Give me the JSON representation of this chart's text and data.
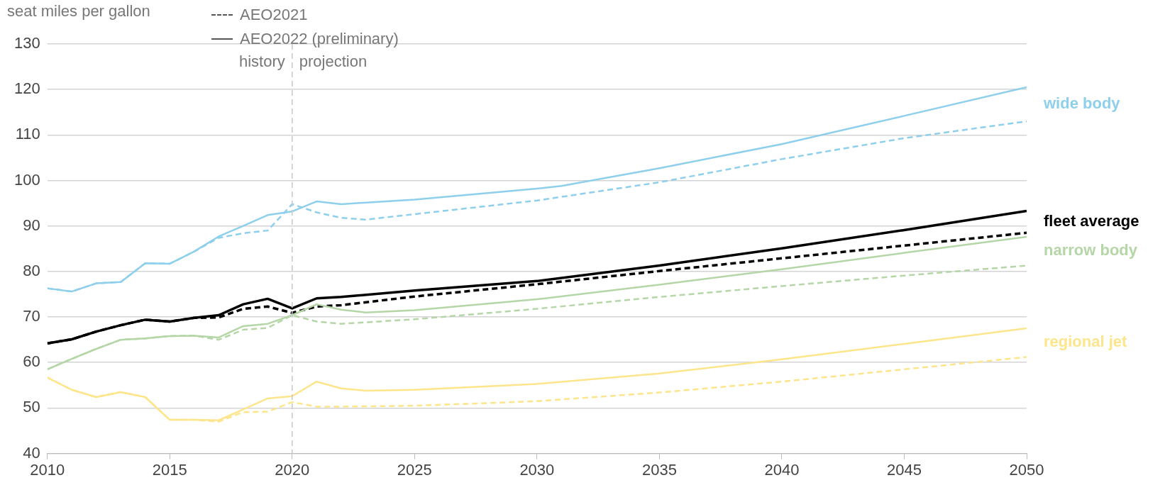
{
  "chart_data": {
    "type": "line",
    "ylabel": "seat miles per gallon",
    "xlim": [
      2010,
      2050
    ],
    "xticks": [
      2010,
      2015,
      2020,
      2025,
      2030,
      2035,
      2040,
      2045,
      2050
    ],
    "ylim": [
      40,
      130
    ],
    "yticks": [
      40,
      50,
      60,
      70,
      80,
      90,
      100,
      110,
      120,
      130
    ],
    "grid": "y",
    "marker": "none",
    "ref_lines": [
      {
        "axis": "x",
        "value": 2020,
        "color": "#c8c8c8",
        "line_style": "dashed"
      }
    ],
    "annotations": [
      "AEO2021",
      "AEO2022 (preliminary)",
      {
        "text": "history",
        "x": 2020,
        "y": 126
      },
      {
        "text": "projection",
        "x": 2020,
        "y": 126
      }
    ],
    "series": [
      {
        "color": "#8ecfec",
        "line_style": "dashed",
        "x": [
          2010,
          2011,
          2012,
          2013,
          2014,
          2015,
          2016,
          2017,
          2018,
          2019,
          2020,
          2021,
          2022,
          2023,
          2025,
          2030,
          2035,
          2040,
          2045,
          2050
        ],
        "values": [
          76.3,
          75.6,
          77.4,
          77.7,
          81.8,
          81.7,
          84.4,
          87.4,
          88.4,
          89,
          94.8,
          93,
          91.8,
          91.4,
          92.6,
          95.6,
          99.6,
          104.7,
          109.3,
          113
        ]
      },
      {
        "name": "wide body",
        "color": "#8ecfec",
        "line_style": "solid",
        "x": [
          2010,
          2011,
          2012,
          2013,
          2014,
          2015,
          2016,
          2017,
          2018,
          2019,
          2020,
          2021,
          2022,
          2025,
          2030,
          2031,
          2035,
          2040,
          2045,
          2050
        ],
        "values": [
          76.3,
          75.6,
          77.4,
          77.7,
          81.8,
          81.7,
          84.4,
          87.7,
          90,
          92.4,
          93.2,
          95.4,
          94.8,
          95.8,
          98.2,
          98.8,
          102.7,
          108,
          114.2,
          120.5
        ]
      },
      {
        "color": "#b5d6a7",
        "line_style": "dashed",
        "x": [
          2010,
          2011,
          2012,
          2013,
          2014,
          2015,
          2016,
          2017,
          2018,
          2019,
          2020,
          2021,
          2022,
          2025,
          2030,
          2035,
          2040,
          2045,
          2050
        ],
        "values": [
          58.5,
          60.8,
          63,
          65,
          65.3,
          65.8,
          65.9,
          65,
          67.2,
          67.6,
          70.4,
          69,
          68.5,
          69.5,
          71.8,
          74.4,
          76.8,
          79.1,
          81.3
        ]
      },
      {
        "name": "narrow body",
        "color": "#b5d6a7",
        "line_style": "solid",
        "x": [
          2010,
          2011,
          2012,
          2013,
          2014,
          2015,
          2016,
          2017,
          2018,
          2019,
          2020,
          2021,
          2022,
          2023,
          2025,
          2030,
          2035,
          2040,
          2045,
          2050
        ],
        "values": [
          58.5,
          60.8,
          63,
          65,
          65.3,
          65.8,
          65.9,
          65.5,
          68,
          68.5,
          70.4,
          72.8,
          71.6,
          71,
          71.5,
          73.9,
          77.1,
          80.5,
          84.1,
          87.6
        ]
      },
      {
        "color": "#fde58c",
        "line_style": "dashed",
        "x": [
          2010,
          2011,
          2012,
          2013,
          2014,
          2015,
          2016,
          2017,
          2018,
          2019,
          2020,
          2021,
          2022,
          2025,
          2030,
          2035,
          2040,
          2045,
          2050
        ],
        "values": [
          56.7,
          54,
          52.4,
          53.5,
          52.4,
          47.4,
          47.4,
          47,
          49.1,
          49.2,
          51.3,
          50.3,
          50.3,
          50.5,
          51.5,
          53.4,
          55.8,
          58.5,
          61.2
        ]
      },
      {
        "name": "regional jet",
        "color": "#fde58c",
        "line_style": "solid",
        "x": [
          2010,
          2011,
          2012,
          2013,
          2014,
          2015,
          2016,
          2017,
          2018,
          2019,
          2020,
          2021,
          2022,
          2023,
          2025,
          2030,
          2035,
          2040,
          2045,
          2050
        ],
        "values": [
          56.7,
          54,
          52.4,
          53.5,
          52.4,
          47.4,
          47.4,
          47.3,
          49.7,
          52.1,
          52.6,
          55.8,
          54.3,
          53.8,
          54,
          55.3,
          57.6,
          60.7,
          64.1,
          67.5
        ]
      },
      {
        "color": "#000000",
        "line_style": "dashed",
        "x": [
          2010,
          2011,
          2012,
          2013,
          2014,
          2015,
          2016,
          2017,
          2018,
          2019,
          2020,
          2021,
          2022,
          2025,
          2030,
          2035,
          2040,
          2045,
          2050
        ],
        "values": [
          64.2,
          65.1,
          66.8,
          68.2,
          69.4,
          69,
          69.8,
          69.9,
          71.8,
          72.3,
          70.9,
          72.3,
          72.6,
          74.5,
          77.2,
          80.1,
          82.9,
          85.7,
          88.5
        ]
      },
      {
        "name": "fleet average",
        "color": "#000000",
        "line_style": "solid",
        "x": [
          2010,
          2011,
          2012,
          2013,
          2014,
          2015,
          2016,
          2017,
          2018,
          2019,
          2020,
          2021,
          2022,
          2025,
          2030,
          2035,
          2040,
          2045,
          2050
        ],
        "values": [
          64.2,
          65.1,
          66.8,
          68.2,
          69.4,
          69,
          69.8,
          70.4,
          72.8,
          74,
          71.9,
          74.1,
          74.4,
          75.8,
          77.9,
          81.3,
          85.1,
          89.1,
          93.3
        ]
      }
    ]
  }
}
